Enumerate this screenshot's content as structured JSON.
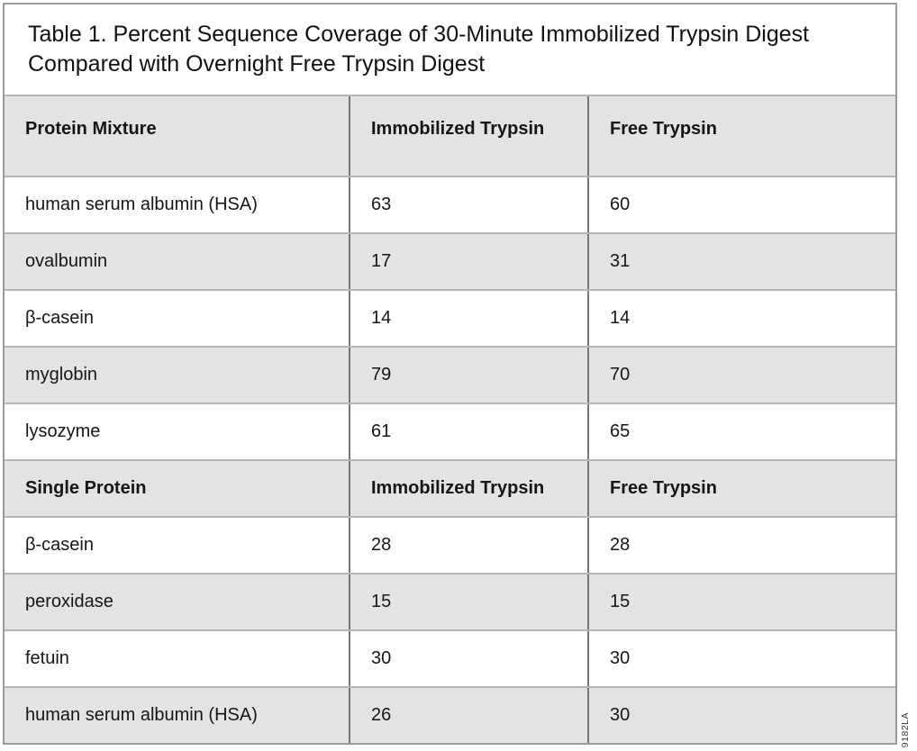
{
  "title": "Table 1. Percent Sequence Coverage of 30-Minute Immobilized Trypsin Digest Compared with Overnight Free Trypsin Digest",
  "table": {
    "header1": {
      "c0": "Protein Mixture",
      "c1": "Immobilized Trypsin",
      "c2": "Free Trypsin"
    },
    "mixture_rows": [
      {
        "protein": "human serum albumin (HSA)",
        "immobilized": "63",
        "free": "60"
      },
      {
        "protein": "ovalbumin",
        "immobilized": "17",
        "free": "31"
      },
      {
        "protein": "β-casein",
        "immobilized": "14",
        "free": "14"
      },
      {
        "protein": "myglobin",
        "immobilized": "79",
        "free": "70"
      },
      {
        "protein": "lysozyme",
        "immobilized": "61",
        "free": "65"
      }
    ],
    "header2": {
      "c0": "Single Protein",
      "c1": "Immobilized Trypsin",
      "c2": "Free Trypsin"
    },
    "single_rows": [
      {
        "protein": "β-casein",
        "immobilized": "28",
        "free": "28"
      },
      {
        "protein": "peroxidase",
        "immobilized": "15",
        "free": "15"
      },
      {
        "protein": "fetuin",
        "immobilized": "30",
        "free": "30"
      },
      {
        "protein": "human serum albumin (HSA)",
        "immobilized": "26",
        "free": "30"
      }
    ]
  },
  "footnote": "9182LA",
  "colors": {
    "row_shade_gray": "#e3e3e3",
    "row_shade_white": "#ffffff",
    "outer_border": "#9a9a9a",
    "vertical_divider": "#757575",
    "horizontal_divider": "#b5b5b5",
    "text": "#161616"
  }
}
